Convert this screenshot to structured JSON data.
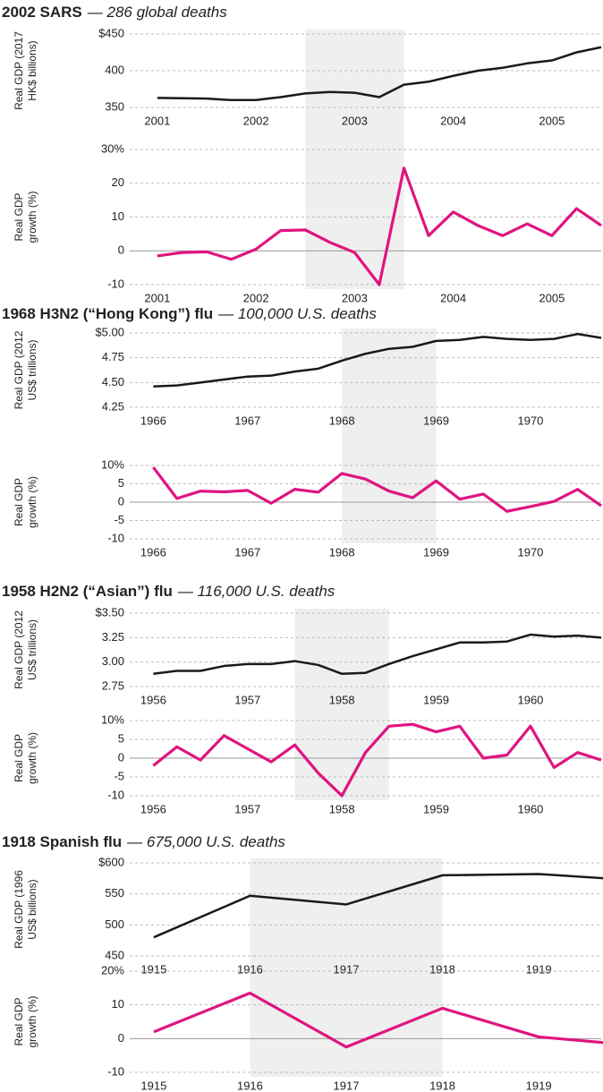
{
  "chart_data": [
    {
      "type": "line",
      "title": "2002 SARS",
      "subtitle": "— 286 global deaths",
      "ylabel": [
        "Real GDP (2017",
        "HK$ billions)"
      ],
      "x": [
        2001,
        2001.25,
        2001.5,
        2001.75,
        2002,
        2002.25,
        2002.5,
        2002.75,
        2003,
        2003.25,
        2003.5,
        2003.75,
        2004,
        2004.25,
        2004.5,
        2004.75,
        2005,
        2005.25,
        2005.5
      ],
      "values": [
        363,
        362.5,
        362,
        360,
        360,
        364,
        369,
        371,
        370,
        364,
        381,
        385,
        393,
        400,
        404,
        410,
        414,
        425,
        432
      ],
      "color": "#1a1a1a",
      "xlim": [
        2000.72,
        2005.5
      ],
      "xticks": [
        2001,
        2002,
        2003,
        2004,
        2005
      ],
      "ylim": [
        350,
        450
      ],
      "yticks": [
        {
          "value": 450,
          "label": "$450"
        },
        400,
        350
      ],
      "shaded_range": [
        2002.5,
        2003.5
      ],
      "grid": true
    },
    {
      "type": "line",
      "ylabel": [
        "Real GDP",
        "growth (%)"
      ],
      "x": [
        2001,
        2001.25,
        2001.5,
        2001.75,
        2002,
        2002.25,
        2002.5,
        2002.75,
        2003,
        2003.25,
        2003.5,
        2003.75,
        2004,
        2004.25,
        2004.5,
        2004.75,
        2005,
        2005.25,
        2005.5
      ],
      "values": [
        -1.5,
        -0.5,
        -0.3,
        -2.5,
        0.5,
        6,
        6.2,
        2.5,
        -0.5,
        -10,
        24.5,
        4.5,
        11.5,
        7.5,
        4.5,
        8,
        4.5,
        12.5,
        7.5
      ],
      "color": "#e0147f",
      "xlim": [
        2000.72,
        2005.5
      ],
      "xticks": [
        2001,
        2002,
        2003,
        2004,
        2005
      ],
      "ylim": [
        -10,
        30
      ],
      "yticks": [
        {
          "value": 30,
          "label": "30%"
        },
        20,
        10,
        0,
        -10
      ],
      "grid": true
    },
    {
      "type": "line",
      "title": "1968 H3N2 (“Hong Kong”) flu",
      "subtitle": "— 100,000 U.S. deaths",
      "ylabel": [
        "Real GDP (2012",
        "US$ trillions)"
      ],
      "x": [
        1966,
        1966.25,
        1966.5,
        1966.75,
        1967,
        1967.25,
        1967.5,
        1967.75,
        1968,
        1968.25,
        1968.5,
        1968.75,
        1969,
        1969.25,
        1969.5,
        1969.75,
        1970,
        1970.25,
        1970.5,
        1970.75
      ],
      "values": [
        4.46,
        4.47,
        4.5,
        4.53,
        4.56,
        4.57,
        4.61,
        4.64,
        4.72,
        4.79,
        4.84,
        4.86,
        4.92,
        4.93,
        4.96,
        4.94,
        4.93,
        4.94,
        4.99,
        4.95
      ],
      "color": "#1a1a1a",
      "xlim": [
        1965.75,
        1970.75
      ],
      "xticks": [
        1966,
        1967,
        1968,
        1969,
        1970
      ],
      "ylim": [
        4.25,
        5
      ],
      "yticks": [
        {
          "value": 5,
          "label": "$5.00"
        },
        4.75,
        {
          "value": 4.5,
          "label": "4.50"
        },
        4.25
      ],
      "shaded_range": [
        1968,
        1969
      ],
      "grid": true
    },
    {
      "type": "line",
      "ylabel": [
        "Real GDP",
        "growth (%)"
      ],
      "x": [
        1966,
        1966.25,
        1966.5,
        1966.75,
        1967,
        1967.25,
        1967.5,
        1967.75,
        1968,
        1968.25,
        1968.5,
        1968.75,
        1969,
        1969.25,
        1969.5,
        1969.75,
        1970,
        1970.25,
        1970.5,
        1970.75
      ],
      "values": [
        9.5,
        1,
        3,
        2.8,
        3.2,
        -0.3,
        3.5,
        2.7,
        7.8,
        6.3,
        3,
        1.2,
        5.8,
        0.8,
        2.2,
        -2.5,
        -1.2,
        0.2,
        3.5,
        -1
      ],
      "color": "#e0147f",
      "xlim": [
        1965.75,
        1970.75
      ],
      "xticks": [
        1966,
        1967,
        1968,
        1969,
        1970
      ],
      "ylim": [
        -10,
        10
      ],
      "yticks": [
        {
          "value": 10,
          "label": "10%"
        },
        5,
        0,
        -5,
        -10
      ],
      "grid": true
    },
    {
      "type": "line",
      "title": "1958 H2N2 (“Asian”) flu",
      "subtitle": "— 116,000 U.S. deaths",
      "ylabel": [
        "Real GDP (2012",
        "US$ trillions)"
      ],
      "x": [
        1956,
        1956.25,
        1956.5,
        1956.75,
        1957,
        1957.25,
        1957.5,
        1957.75,
        1958,
        1958.25,
        1958.5,
        1958.75,
        1959,
        1959.25,
        1959.5,
        1959.75,
        1960,
        1960.25,
        1960.5,
        1960.75
      ],
      "values": [
        2.88,
        2.91,
        2.91,
        2.96,
        2.98,
        2.98,
        3.01,
        2.97,
        2.88,
        2.89,
        2.98,
        3.06,
        3.13,
        3.2,
        3.2,
        3.21,
        3.28,
        3.26,
        3.27,
        3.25
      ],
      "color": "#1a1a1a",
      "xlim": [
        1955.75,
        1960.75
      ],
      "xticks": [
        1956,
        1957,
        1958,
        1959,
        1960
      ],
      "ylim": [
        2.75,
        3.5
      ],
      "yticks": [
        {
          "value": 3.5,
          "label": "$3.50"
        },
        3.25,
        {
          "value": 3,
          "label": "3.00"
        },
        2.75
      ],
      "shaded_range": [
        1957.5,
        1958.5
      ],
      "grid": true
    },
    {
      "type": "line",
      "ylabel": [
        "Real GDP",
        "growth (%)"
      ],
      "x": [
        1956,
        1956.25,
        1956.5,
        1956.75,
        1957,
        1957.25,
        1957.5,
        1957.75,
        1958,
        1958.25,
        1958.5,
        1958.75,
        1959,
        1959.25,
        1959.5,
        1959.75,
        1960,
        1960.25,
        1960.5,
        1960.75
      ],
      "values": [
        -2,
        3,
        -0.5,
        6,
        2.5,
        -1,
        3.5,
        -4,
        -10,
        1.5,
        8.5,
        9,
        7,
        8.5,
        0,
        0.8,
        8.5,
        -2.5,
        1.5,
        -0.5
      ],
      "color": "#e0147f",
      "xlim": [
        1955.75,
        1960.75
      ],
      "xticks": [
        1956,
        1957,
        1958,
        1959,
        1960
      ],
      "ylim": [
        -10,
        10
      ],
      "yticks": [
        {
          "value": 10,
          "label": "10%"
        },
        5,
        0,
        -5,
        -10
      ],
      "grid": true
    },
    {
      "type": "line",
      "title": "1918 Spanish flu",
      "subtitle": "— 675,000 U.S. deaths",
      "ylabel": [
        "Real GDP (1996",
        "US$ billions)"
      ],
      "x": [
        1915,
        1916,
        1917,
        1918,
        1919,
        1920
      ],
      "values": [
        480,
        547,
        533,
        580,
        582,
        572
      ],
      "color": "#1a1a1a",
      "xlim": [
        1914.75,
        1919.65
      ],
      "xticks": [
        1915,
        1916,
        1917,
        1918,
        1919
      ],
      "ylim": [
        450,
        600
      ],
      "yticks": [
        {
          "value": 600,
          "label": "$600"
        },
        550,
        500,
        450
      ],
      "shaded_range": [
        1916,
        1918
      ],
      "grid": true
    },
    {
      "type": "line",
      "ylabel": [
        "Real GDP",
        "growth (%)"
      ],
      "x": [
        1915,
        1916,
        1917,
        1918,
        1919,
        1920
      ],
      "values": [
        2,
        13.5,
        -2.5,
        9,
        0.5,
        -2
      ],
      "color": "#e0147f",
      "xlim": [
        1914.75,
        1919.65
      ],
      "xticks": [
        1915,
        1916,
        1917,
        1918,
        1919
      ],
      "ylim": [
        -10,
        20
      ],
      "yticks": [
        {
          "value": 20,
          "label": "20%"
        },
        10,
        0,
        -10
      ],
      "grid": true
    }
  ]
}
